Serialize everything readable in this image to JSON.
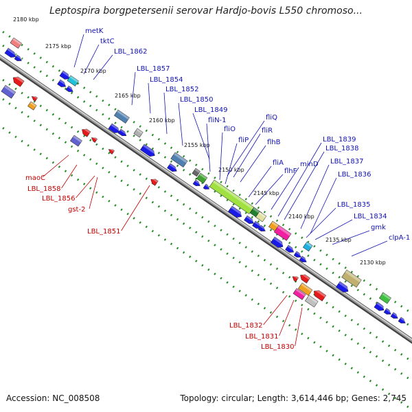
{
  "title": "Leptospira borgpetersenii serovar Hardjo-bovis L550 chromoso...",
  "footer": {
    "accession": "Accession: NC_008508",
    "summary": "Topology: circular; Length: 3,614,446 bp; Genes: 2,745"
  },
  "colors": {
    "backbone": "#7a7a7a",
    "forward_label": "#1010b0",
    "reverse_label": "#c00000",
    "forward_gene": "#1a1ae6",
    "reverse_gene": "#e61a1a",
    "tick_dots": "#228b22"
  },
  "kbp_marks": [
    "2180 kbp",
    "2175 kbp",
    "2170 kbp",
    "2165 kbp",
    "2160 kbp",
    "2155 kbp",
    "2150 kbp",
    "2145 kbp",
    "2140 kbp",
    "2135 kbp",
    "2130 kbp"
  ],
  "forward_labels": [
    "metK",
    "tktC",
    "LBL_1862",
    "LBL_1857",
    "LBL_1854",
    "LBL_1852",
    "LBL_1850",
    "LBL_1849",
    "fliN-1",
    "fliO",
    "fliP",
    "fliQ",
    "fliR",
    "flhB",
    "fliA",
    "flhF",
    "minD",
    "LBL_1839",
    "LBL_1838",
    "LBL_1837",
    "LBL_1836",
    "LBL_1835",
    "LBL_1834",
    "gmk",
    "clpA-1"
  ],
  "reverse_labels": [
    "maoC",
    "LBL_1858",
    "LBL_1856",
    "gst-2",
    "LBL_1851",
    "LBL_1832",
    "LBL_1831",
    "LBL_1830"
  ]
}
